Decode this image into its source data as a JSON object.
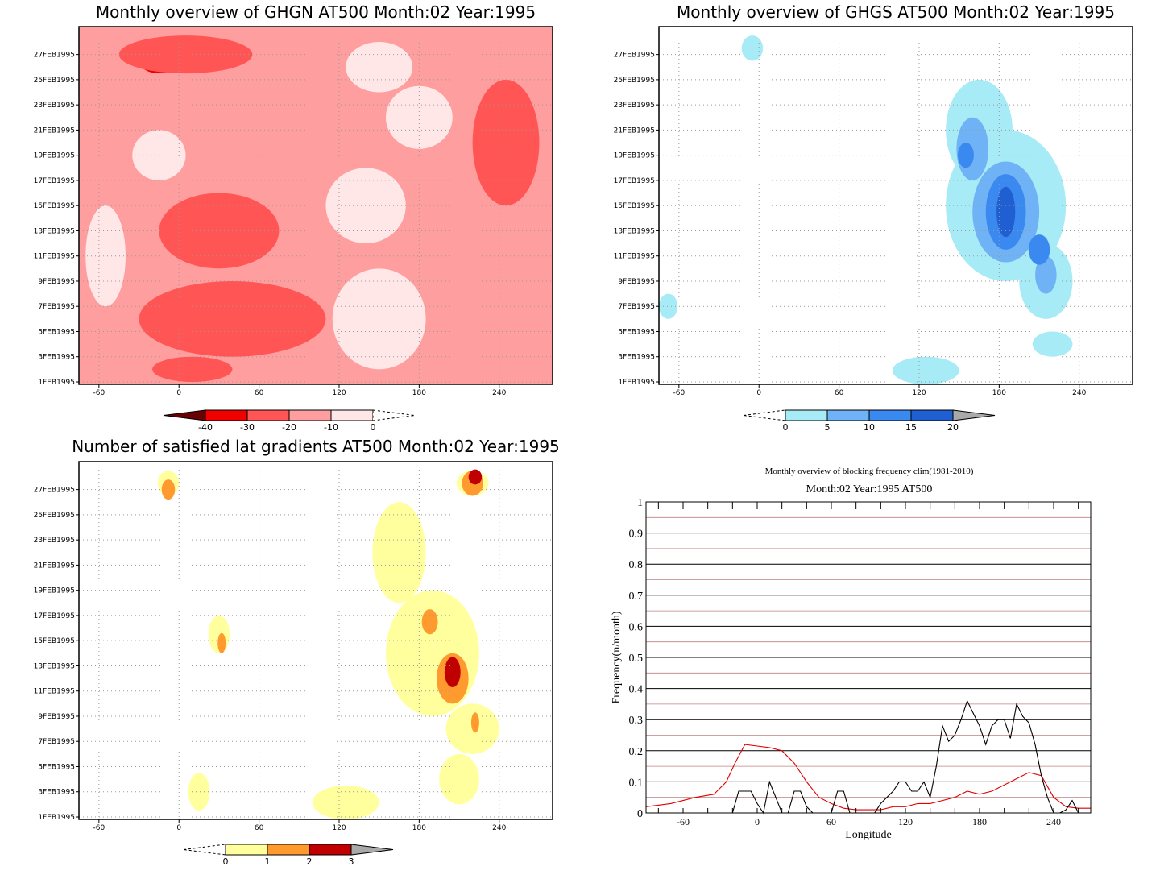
{
  "chart_data": [
    {
      "type": "heatmap",
      "title": "Monthly overview of GHGN AT500 Month:02 Year:1995",
      "x_ticks": [
        -60,
        0,
        60,
        120,
        180,
        240
      ],
      "y_ticks": [
        "1FEB1995",
        "3FEB1995",
        "5FEB1995",
        "7FEB1995",
        "9FEB1995",
        "11FEB1995",
        "13FEB1995",
        "15FEB1995",
        "17FEB1995",
        "19FEB1995",
        "21FEB1995",
        "23FEB1995",
        "25FEB1995",
        "27FEB1995"
      ],
      "xlim": [
        -75,
        280
      ],
      "colorbar": {
        "labels": [
          "-40",
          "-30",
          "-20",
          "-10",
          "0"
        ],
        "colors": [
          "#6b0000",
          "#f10000",
          "#ff5555",
          "#ff9e9e",
          "#ffe7e7"
        ]
      },
      "regions": [
        {
          "level": 4,
          "color": "#ffe7e7",
          "lon": 150,
          "day": 6,
          "rx": 35,
          "ry": 4
        },
        {
          "level": 4,
          "color": "#ffe7e7",
          "lon": 140,
          "day": 15,
          "rx": 30,
          "ry": 3
        },
        {
          "level": 4,
          "color": "#ffe7e7",
          "lon": 180,
          "day": 22,
          "rx": 25,
          "ry": 2.5
        },
        {
          "level": 4,
          "color": "#ffe7e7",
          "lon": 150,
          "day": 26,
          "rx": 25,
          "ry": 2
        },
        {
          "level": 4,
          "color": "#ffe7e7",
          "lon": -55,
          "day": 11,
          "rx": 15,
          "ry": 4
        },
        {
          "level": 4,
          "color": "#ffe7e7",
          "lon": -15,
          "day": 19,
          "rx": 20,
          "ry": 2
        },
        {
          "level": 2,
          "color": "#ff5555",
          "lon": 40,
          "day": 6,
          "rx": 70,
          "ry": 3
        },
        {
          "level": 2,
          "color": "#ff5555",
          "lon": 30,
          "day": 13,
          "rx": 45,
          "ry": 3
        },
        {
          "level": 2,
          "color": "#ff5555",
          "lon": 5,
          "day": 27,
          "rx": 50,
          "ry": 1.5
        },
        {
          "level": 2,
          "color": "#ff5555",
          "lon": 245,
          "day": 20,
          "rx": 25,
          "ry": 5
        },
        {
          "level": 2,
          "color": "#ff5555",
          "lon": 10,
          "day": 2,
          "rx": 30,
          "ry": 1
        },
        {
          "level": 1,
          "color": "#f10000",
          "lon": 10,
          "day": 5.5,
          "rx": 25,
          "ry": 1
        },
        {
          "level": 1,
          "color": "#f10000",
          "lon": 245,
          "day": 20,
          "rx": 8,
          "ry": 0.8
        },
        {
          "level": 1,
          "color": "#f10000",
          "lon": -15,
          "day": 26.5,
          "rx": 15,
          "ry": 1
        }
      ]
    },
    {
      "type": "heatmap",
      "title": "Monthly overview of GHGS AT500 Month:02 Year:1995",
      "x_ticks": [
        -60,
        0,
        60,
        120,
        180,
        240
      ],
      "y_ticks": [
        "1FEB1995",
        "3FEB1995",
        "5FEB1995",
        "7FEB1995",
        "9FEB1995",
        "11FEB1995",
        "13FEB1995",
        "15FEB1995",
        "17FEB1995",
        "19FEB1995",
        "21FEB1995",
        "23FEB1995",
        "25FEB1995",
        "27FEB1995"
      ],
      "xlim": [
        -75,
        280
      ],
      "colorbar": {
        "labels": [
          "0",
          "5",
          "10",
          "15",
          "20"
        ],
        "colors": [
          "#a6ebf6",
          "#6fb2f5",
          "#3a89f0",
          "#1f5fd1",
          "#a9a9a9"
        ]
      },
      "regions": [
        {
          "level": 1,
          "color": "#a6ebf6",
          "lon": 185,
          "day": 15,
          "rx": 45,
          "ry": 6
        },
        {
          "level": 1,
          "color": "#a6ebf6",
          "lon": 165,
          "day": 21,
          "rx": 25,
          "ry": 4
        },
        {
          "level": 1,
          "color": "#a6ebf6",
          "lon": 215,
          "day": 9,
          "rx": 20,
          "ry": 3
        },
        {
          "level": 1,
          "color": "#a6ebf6",
          "lon": 125,
          "day": 1.5,
          "rx": 25,
          "ry": 1.5
        },
        {
          "level": 1,
          "color": "#a6ebf6",
          "lon": -5,
          "day": 27.5,
          "rx": 8,
          "ry": 1
        },
        {
          "level": 1,
          "color": "#a6ebf6",
          "lon": 220,
          "day": 4,
          "rx": 15,
          "ry": 1
        },
        {
          "level": 1,
          "color": "#a6ebf6",
          "lon": -68,
          "day": 7,
          "rx": 7,
          "ry": 1
        },
        {
          "level": 2,
          "color": "#6fb2f5",
          "lon": 160,
          "day": 19.5,
          "rx": 12,
          "ry": 2.5
        },
        {
          "level": 2,
          "color": "#6fb2f5",
          "lon": 185,
          "day": 14.5,
          "rx": 25,
          "ry": 4
        },
        {
          "level": 2,
          "color": "#6fb2f5",
          "lon": 215,
          "day": 9.5,
          "rx": 8,
          "ry": 1.5
        },
        {
          "level": 3,
          "color": "#3a89f0",
          "lon": 185,
          "day": 14.5,
          "rx": 15,
          "ry": 3
        },
        {
          "level": 3,
          "color": "#3a89f0",
          "lon": 210,
          "day": 11.5,
          "rx": 8,
          "ry": 1.2
        },
        {
          "level": 3,
          "color": "#3a89f0",
          "lon": 155,
          "day": 19,
          "rx": 6,
          "ry": 1
        },
        {
          "level": 4,
          "color": "#1f5fd1",
          "lon": 185,
          "day": 14.5,
          "rx": 7,
          "ry": 2
        }
      ]
    },
    {
      "type": "heatmap",
      "title": "Number of satisfied lat gradients AT500 Month:02 Year:1995",
      "x_ticks": [
        -60,
        0,
        60,
        120,
        180,
        240
      ],
      "y_ticks": [
        "1FEB1995",
        "3FEB1995",
        "5FEB1995",
        "7FEB1995",
        "9FEB1995",
        "11FEB1995",
        "13FEB1995",
        "15FEB1995",
        "17FEB1995",
        "19FEB1995",
        "21FEB1995",
        "23FEB1995",
        "25FEB1995",
        "27FEB1995"
      ],
      "xlim": [
        -75,
        280
      ],
      "colorbar": {
        "labels": [
          "0",
          "1",
          "2",
          "3"
        ],
        "colors": [
          "#ffff9e",
          "#ff9a2e",
          "#c00000",
          "#a9a9a9"
        ]
      },
      "regions": [
        {
          "level": 1,
          "color": "#ffff9e",
          "lon": 190,
          "day": 14,
          "rx": 35,
          "ry": 5
        },
        {
          "level": 1,
          "color": "#ffff9e",
          "lon": 165,
          "day": 22,
          "rx": 20,
          "ry": 4
        },
        {
          "level": 1,
          "color": "#ffff9e",
          "lon": 220,
          "day": 8,
          "rx": 20,
          "ry": 2
        },
        {
          "level": 1,
          "color": "#ffff9e",
          "lon": 210,
          "day": 4,
          "rx": 15,
          "ry": 2
        },
        {
          "level": 1,
          "color": "#ffff9e",
          "lon": 125,
          "day": 2,
          "rx": 25,
          "ry": 1.5
        },
        {
          "level": 1,
          "color": "#ffff9e",
          "lon": 220,
          "day": 27.5,
          "rx": 12,
          "ry": 1
        },
        {
          "level": 1,
          "color": "#ffff9e",
          "lon": -8,
          "day": 27.5,
          "rx": 8,
          "ry": 1
        },
        {
          "level": 1,
          "color": "#ffff9e",
          "lon": 30,
          "day": 15.5,
          "rx": 8,
          "ry": 1.5
        },
        {
          "level": 1,
          "color": "#ffff9e",
          "lon": 15,
          "day": 3,
          "rx": 8,
          "ry": 1.5
        },
        {
          "level": 2,
          "color": "#ff9a2e",
          "lon": 188,
          "day": 16.5,
          "rx": 6,
          "ry": 1
        },
        {
          "level": 2,
          "color": "#ff9a2e",
          "lon": 205,
          "day": 12,
          "rx": 12,
          "ry": 2
        },
        {
          "level": 2,
          "color": "#ff9a2e",
          "lon": 220,
          "day": 27.5,
          "rx": 8,
          "ry": 1
        },
        {
          "level": 2,
          "color": "#ff9a2e",
          "lon": -8,
          "day": 27,
          "rx": 5,
          "ry": 0.8
        },
        {
          "level": 2,
          "color": "#ff9a2e",
          "lon": 32,
          "day": 14.8,
          "rx": 3,
          "ry": 0.8
        },
        {
          "level": 2,
          "color": "#ff9a2e",
          "lon": 222,
          "day": 8.5,
          "rx": 3,
          "ry": 0.8
        },
        {
          "level": 3,
          "color": "#c00000",
          "lon": 205,
          "day": 12.5,
          "rx": 6,
          "ry": 1.2
        },
        {
          "level": 3,
          "color": "#c00000",
          "lon": 222,
          "day": 28,
          "rx": 5,
          "ry": 0.6
        }
      ]
    },
    {
      "type": "line",
      "title": "Monthly overview of blocking frequency clim(1981-2010)",
      "subtitle": "Month:02 Year:1995  AT500",
      "xlabel": "Longitude",
      "ylabel": "Frequency(n/month)",
      "xlim": [
        -90,
        270
      ],
      "ylim": [
        0,
        1
      ],
      "x_ticks": [
        -60,
        0,
        60,
        120,
        180,
        240
      ],
      "y_ticks": [
        "0",
        "0.1",
        "0.2",
        "0.3",
        "0.4",
        "0.5",
        "0.6",
        "0.7",
        "0.8",
        "0.9",
        "1"
      ],
      "series": [
        {
          "color": "#e00000",
          "x": [
            -90,
            -70,
            -50,
            -35,
            -25,
            -18,
            -10,
            0,
            10,
            20,
            30,
            40,
            50,
            60,
            70,
            80,
            90,
            100,
            110,
            120,
            130,
            140,
            150,
            160,
            170,
            180,
            190,
            200,
            210,
            220,
            230,
            240,
            250,
            260,
            270
          ],
          "values": [
            0.02,
            0.03,
            0.05,
            0.06,
            0.1,
            0.16,
            0.22,
            0.215,
            0.21,
            0.2,
            0.16,
            0.1,
            0.05,
            0.03,
            0.015,
            0.01,
            0.01,
            0.01,
            0.02,
            0.02,
            0.03,
            0.03,
            0.04,
            0.05,
            0.07,
            0.06,
            0.07,
            0.09,
            0.11,
            0.13,
            0.12,
            0.05,
            0.02,
            0.015,
            0.015
          ]
        },
        {
          "color": "#000000",
          "x": [
            -90,
            -20,
            -15,
            -10,
            -5,
            0,
            5,
            10,
            15,
            20,
            25,
            30,
            35,
            40,
            45,
            50,
            55,
            60,
            65,
            70,
            75,
            80,
            85,
            90,
            95,
            100,
            105,
            110,
            115,
            120,
            125,
            130,
            135,
            140,
            145,
            150,
            155,
            160,
            165,
            170,
            175,
            180,
            185,
            190,
            195,
            200,
            205,
            210,
            215,
            220,
            225,
            230,
            235,
            240,
            245,
            250,
            255,
            260,
            270
          ],
          "values": [
            0,
            0,
            0.07,
            0.07,
            0.07,
            0.03,
            0,
            0.1,
            0.05,
            0,
            0,
            0.07,
            0.07,
            0.02,
            0,
            0,
            0,
            0,
            0.07,
            0.07,
            0,
            0,
            0,
            0,
            0,
            0.03,
            0.05,
            0.07,
            0.1,
            0.1,
            0.07,
            0.07,
            0.1,
            0.05,
            0.15,
            0.28,
            0.23,
            0.25,
            0.3,
            0.36,
            0.32,
            0.28,
            0.22,
            0.28,
            0.3,
            0.3,
            0.24,
            0.35,
            0.31,
            0.29,
            0.22,
            0.12,
            0.05,
            0,
            0,
            0.01,
            0.04,
            0.0,
            0
          ]
        }
      ]
    }
  ]
}
